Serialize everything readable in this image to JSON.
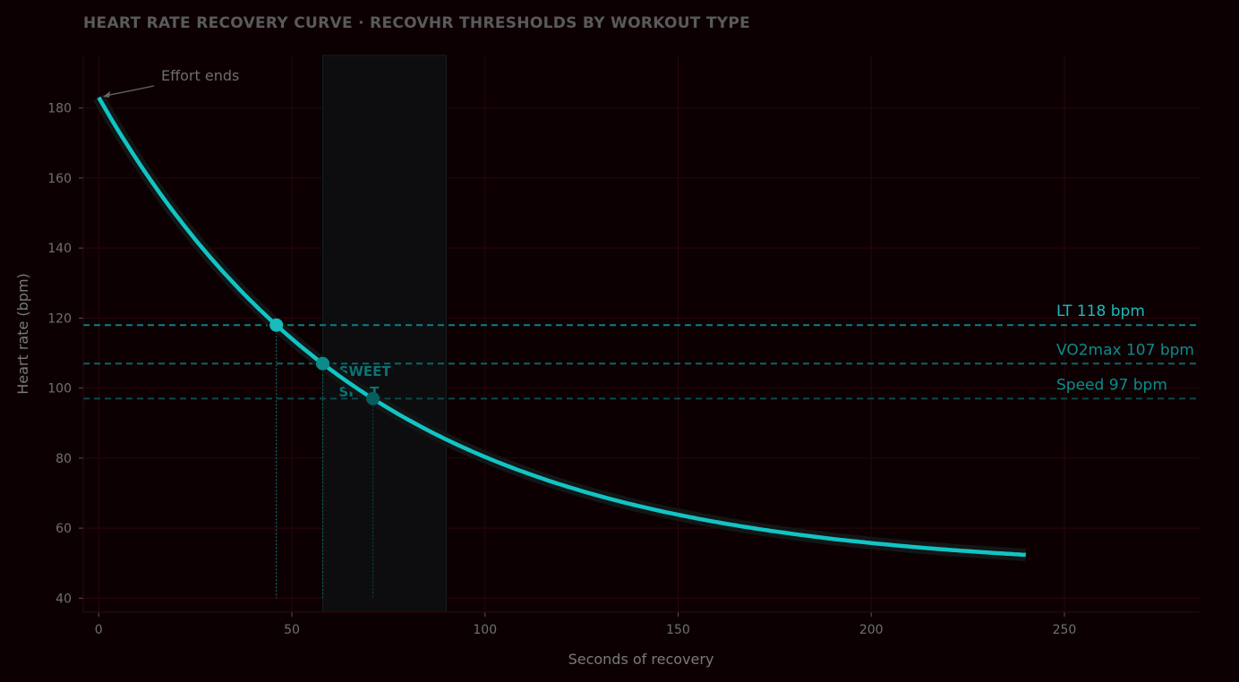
{
  "chart_data": {
    "type": "line",
    "title": "HEART RATE RECOVERY CURVE  ·  RECOVHR THRESHOLDS BY WORKOUT TYPE",
    "xlabel": "Seconds of recovery",
    "ylabel": "Heart rate (bpm)",
    "xlim": [
      -4,
      285
    ],
    "ylim": [
      36,
      195
    ],
    "xticks": [
      0,
      50,
      100,
      150,
      200,
      250
    ],
    "yticks": [
      40,
      60,
      80,
      100,
      120,
      140,
      160,
      180
    ],
    "grid": true,
    "curve": {
      "x_start": 0,
      "x_end": 240,
      "values_sampled": [
        [
          0,
          183
        ],
        [
          20,
          149.4
        ],
        [
          40,
          124.2
        ],
        [
          60,
          104.3
        ],
        [
          80,
          91.1
        ],
        [
          100,
          79.4
        ],
        [
          120,
          72.3
        ],
        [
          150,
          63.8
        ],
        [
          180,
          58.3
        ],
        [
          210,
          54.7
        ],
        [
          240,
          52.4
        ]
      ],
      "color": "#13c4c4"
    },
    "thresholds": [
      {
        "name": "LT",
        "label": "LT  118 bpm",
        "value": 118,
        "x": 46,
        "color": "#17bcbc",
        "line_color": "#0e7f80"
      },
      {
        "name": "VO2max",
        "label": "VO2max  107 bpm",
        "value": 107,
        "x": 58,
        "color": "#0b8b8b",
        "line_color": "#0a6666"
      },
      {
        "name": "Speed",
        "label": "Speed  97 bpm",
        "value": 97,
        "x": 71,
        "color": "#0a8c8c",
        "line_color": "#084c4c",
        "point_color": "#075e5e"
      }
    ],
    "sweet_spot": {
      "x_range": [
        58,
        90
      ],
      "label_line1": "SWEET",
      "label_line2": "SPOT",
      "color": "#0c7272"
    },
    "annotations": [
      {
        "text": "Effort ends",
        "x": 0,
        "y": 183
      }
    ]
  }
}
